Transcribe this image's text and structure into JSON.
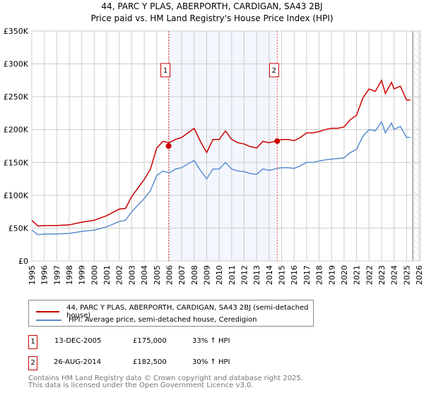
{
  "chart_data": {
    "type": "line",
    "title": "44, PARC Y PLAS, ABERPORTH, CARDIGAN, SA43 2BJ",
    "subtitle": "Price paid vs. HM Land Registry's House Price Index (HPI)",
    "xlim": [
      1995,
      2026
    ],
    "ylim": [
      0,
      350000
    ],
    "x_ticks": [
      "1995",
      "1996",
      "1997",
      "1998",
      "1999",
      "2000",
      "2001",
      "2002",
      "2003",
      "2004",
      "2005",
      "2006",
      "2007",
      "2008",
      "2009",
      "2010",
      "2011",
      "2012",
      "2013",
      "2014",
      "2015",
      "2016",
      "2017",
      "2018",
      "2019",
      "2020",
      "2021",
      "2022",
      "2023",
      "2024",
      "2025",
      "2026"
    ],
    "y_ticks": [
      {
        "v": 0,
        "label": "£0"
      },
      {
        "v": 50000,
        "label": "£50K"
      },
      {
        "v": 100000,
        "label": "£100K"
      },
      {
        "v": 150000,
        "label": "£150K"
      },
      {
        "v": 200000,
        "label": "£200K"
      },
      {
        "v": 250000,
        "label": "£250K"
      },
      {
        "v": 300000,
        "label": "£300K"
      },
      {
        "v": 350000,
        "label": "£350K"
      }
    ],
    "grid": true,
    "x": [
      1995,
      1995.5,
      1996,
      1997,
      1998,
      1999,
      2000,
      2001,
      2002,
      2002.5,
      2003,
      2004,
      2004.5,
      2005,
      2005.5,
      2006,
      2006.5,
      2007,
      2007.5,
      2008,
      2008.5,
      2009,
      2009.5,
      2010,
      2010.5,
      2011,
      2011.5,
      2012,
      2012.5,
      2013,
      2013.5,
      2014,
      2014.65,
      2015,
      2015.5,
      2016,
      2016.5,
      2017,
      2017.5,
      2018,
      2018.5,
      2019,
      2019.5,
      2020,
      2020.5,
      2021,
      2021.5,
      2022,
      2022.5,
      2023,
      2023.3,
      2023.8,
      2024,
      2024.5,
      2025,
      2025.3
    ],
    "series": [
      {
        "name": "44, PARC Y PLAS, ABERPORTH, CARDIGAN, SA43 2BJ (semi-detached house)",
        "color": "#cc0000",
        "values": [
          62,
          53,
          54,
          54,
          55,
          59,
          62,
          69,
          79,
          80,
          98,
          124,
          140,
          172,
          182,
          180,
          185,
          188,
          195,
          202,
          182,
          165,
          185,
          185,
          198,
          185,
          180,
          178,
          174,
          172,
          182,
          180,
          183,
          185,
          185,
          183,
          188,
          195,
          195,
          197,
          200,
          202,
          202,
          204,
          215,
          222,
          248,
          262,
          258,
          275,
          255,
          272,
          262,
          266,
          245,
          245
        ]
      },
      {
        "name": "HPI: Average price, semi-detached house, Ceredigion",
        "color": "#5b8dd0",
        "values": [
          47,
          40,
          41,
          41,
          42,
          45,
          47,
          52,
          60,
          62,
          75,
          95,
          107,
          130,
          137,
          134,
          140,
          142,
          148,
          153,
          138,
          125,
          140,
          140,
          150,
          140,
          137,
          136,
          133,
          132,
          140,
          138,
          141,
          142,
          142,
          141,
          145,
          150,
          150,
          152,
          154,
          155,
          156,
          157,
          165,
          170,
          190,
          200,
          198,
          212,
          195,
          210,
          200,
          205,
          188,
          188
        ]
      }
    ],
    "value_unit": "thousands GBP",
    "sales": [
      {
        "n": "1",
        "x": 2005.95,
        "price": 175
      },
      {
        "n": "2",
        "x": 2014.65,
        "price": 182.5
      }
    ],
    "shaded_range": [
      2005.95,
      2014.65
    ],
    "forecast_from": 2025.5,
    "legend_position": "below"
  },
  "transactions": [
    {
      "n": "1",
      "date": "13-DEC-2005",
      "price": "£175,000",
      "delta": "33% ↑ HPI"
    },
    {
      "n": "2",
      "date": "26-AUG-2014",
      "price": "£182,500",
      "delta": "30% ↑ HPI"
    }
  ],
  "footer": [
    "Contains HM Land Registry data © Crown copyright and database right 2025.",
    "This data is licensed under the Open Government Licence v3.0."
  ]
}
